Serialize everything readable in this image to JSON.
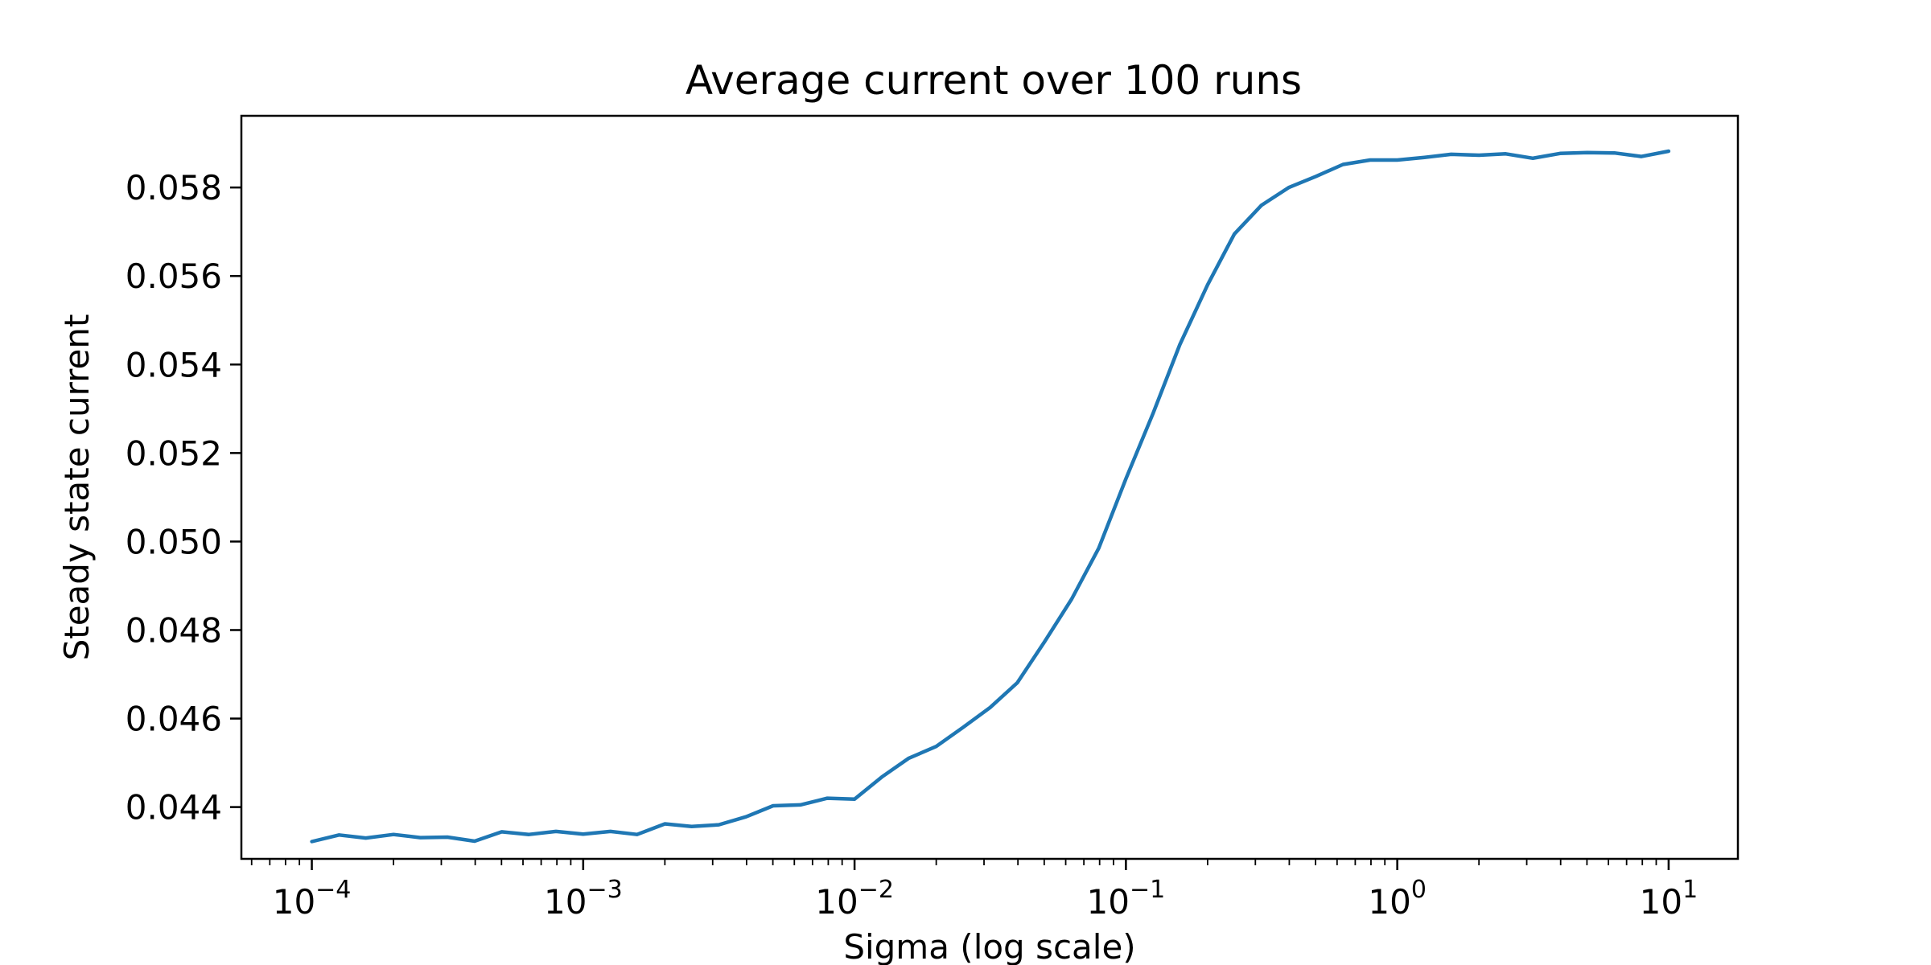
{
  "chart_data": {
    "type": "line",
    "title": "Average current over 100 runs",
    "xlabel": "Sigma (log scale)",
    "ylabel": "Steady state current",
    "x_scale": "log",
    "xlim": [
      5.5e-05,
      18
    ],
    "ylim": [
      0.04283,
      0.05962
    ],
    "x_ticks": [
      {
        "base": "10",
        "exp": "−4",
        "value": 0.0001
      },
      {
        "base": "10",
        "exp": "−3",
        "value": 0.001
      },
      {
        "base": "10",
        "exp": "−2",
        "value": 0.01
      },
      {
        "base": "10",
        "exp": "−1",
        "value": 0.1
      },
      {
        "base": "10",
        "exp": "0",
        "value": 1
      },
      {
        "base": "10",
        "exp": "1",
        "value": 10
      }
    ],
    "y_ticks": [
      "0.044",
      "0.046",
      "0.048",
      "0.050",
      "0.052",
      "0.054",
      "0.056",
      "0.058"
    ],
    "grid": false,
    "legend": "none",
    "line_color": "#1f77b4",
    "x": [
      0.0001,
      0.000126,
      0.000158,
      0.0002,
      0.000251,
      0.000316,
      0.000398,
      0.000501,
      0.000631,
      0.000794,
      0.001,
      0.00126,
      0.00158,
      0.002,
      0.00251,
      0.00316,
      0.00398,
      0.00501,
      0.00631,
      0.00794,
      0.01,
      0.0126,
      0.0158,
      0.02,
      0.0251,
      0.0316,
      0.0398,
      0.0501,
      0.0631,
      0.0794,
      0.1,
      0.126,
      0.158,
      0.2,
      0.251,
      0.316,
      0.398,
      0.501,
      0.631,
      0.794,
      1,
      1.26,
      1.58,
      2,
      2.51,
      3.16,
      3.98,
      5.01,
      6.31,
      7.94,
      10
    ],
    "y": [
      0.04322,
      0.04337,
      0.0433,
      0.04338,
      0.04331,
      0.04332,
      0.04323,
      0.04344,
      0.04338,
      0.04345,
      0.04339,
      0.04345,
      0.04338,
      0.04362,
      0.04356,
      0.0436,
      0.04378,
      0.04403,
      0.04405,
      0.0442,
      0.04418,
      0.04468,
      0.0451,
      0.04537,
      0.0458,
      0.04625,
      0.04681,
      0.04773,
      0.0487,
      0.04985,
      0.05142,
      0.0529,
      0.05445,
      0.0558,
      0.05695,
      0.0576,
      0.058,
      0.05825,
      0.05852,
      0.05862,
      0.05862,
      0.05868,
      0.05875,
      0.05873,
      0.05876,
      0.05866,
      0.05877,
      0.05879,
      0.05878,
      0.0587,
      0.05882
    ]
  }
}
